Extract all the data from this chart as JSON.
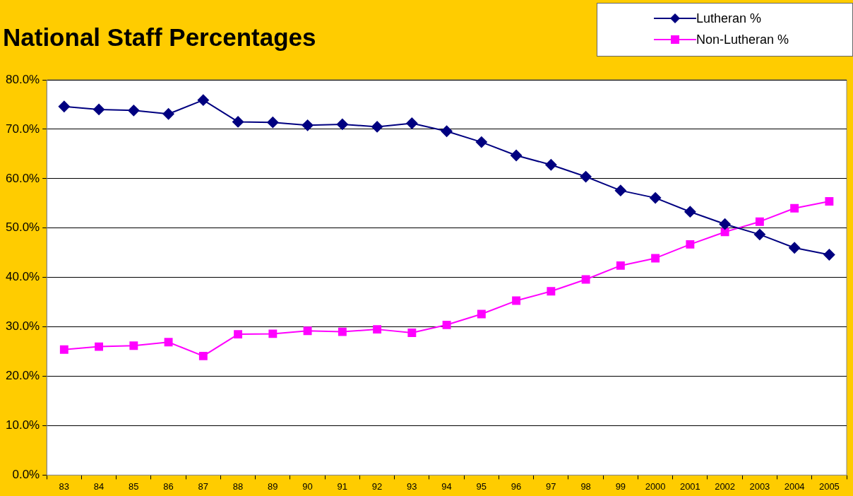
{
  "chart_data": {
    "type": "line",
    "title": "National Staff Percentages",
    "categories": [
      "83",
      "84",
      "85",
      "86",
      "87",
      "88",
      "89",
      "90",
      "91",
      "92",
      "93",
      "94",
      "95",
      "96",
      "97",
      "98",
      "99",
      "2000",
      "2001",
      "2002",
      "2003",
      "2004",
      "2005"
    ],
    "series": [
      {
        "name": "Lutheran %",
        "color": "#000080",
        "marker": "diamond",
        "values": [
          74.6,
          74.0,
          73.8,
          73.1,
          75.9,
          71.5,
          71.4,
          70.8,
          71.0,
          70.5,
          71.2,
          69.6,
          67.4,
          64.7,
          62.8,
          60.4,
          57.6,
          56.1,
          53.3,
          50.8,
          48.7,
          46.0,
          44.6
        ]
      },
      {
        "name": "Non-Lutheran %",
        "color": "#ff00ff",
        "marker": "square",
        "values": [
          25.4,
          26.0,
          26.2,
          26.9,
          24.1,
          28.5,
          28.6,
          29.2,
          29.0,
          29.5,
          28.8,
          30.4,
          32.6,
          35.3,
          37.2,
          39.6,
          42.4,
          43.9,
          46.7,
          49.2,
          51.3,
          54.0,
          55.4
        ]
      }
    ],
    "ylim": [
      0,
      80
    ],
    "yticks": [
      {
        "value": 0,
        "label": "0.0%"
      },
      {
        "value": 10,
        "label": "10.0%"
      },
      {
        "value": 20,
        "label": "20.0%"
      },
      {
        "value": 30,
        "label": "30.0%"
      },
      {
        "value": 40,
        "label": "40.0%"
      },
      {
        "value": 50,
        "label": "50.0%"
      },
      {
        "value": 60,
        "label": "60.0%"
      },
      {
        "value": 70,
        "label": "70.0%"
      },
      {
        "value": 80,
        "label": "80.0%"
      }
    ],
    "grid": "y",
    "legend": "top right",
    "line_style": "solid"
  }
}
